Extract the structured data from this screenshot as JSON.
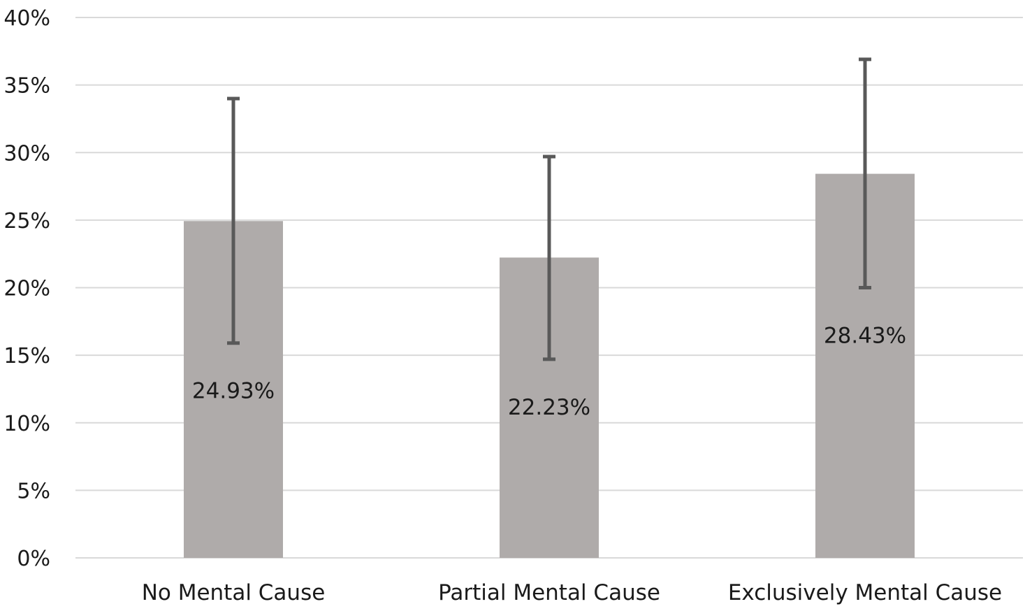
{
  "chart_data": {
    "type": "bar",
    "title": "",
    "xlabel": "",
    "ylabel": "",
    "categories": [
      "No Mental Cause",
      "Partial Mental Cause",
      "Exclusively Mental Cause"
    ],
    "values": [
      24.93,
      22.23,
      28.43
    ],
    "data_labels": [
      "24.93%",
      "22.23%",
      "28.43%"
    ],
    "error_bars": [
      {
        "low": 15.9,
        "high": 34.0
      },
      {
        "low": 14.7,
        "high": 29.7
      },
      {
        "low": 20.0,
        "high": 36.9
      }
    ],
    "ylim": [
      0,
      40
    ],
    "yticks": [
      0,
      5,
      10,
      15,
      20,
      25,
      30,
      35,
      40
    ],
    "ytick_labels": [
      "0%",
      "5%",
      "10%",
      "15%",
      "20%",
      "25%",
      "30%",
      "35%",
      "40%"
    ],
    "grid": true,
    "legend": "none",
    "colors": {
      "bar": "#afabaa",
      "error_bar": "#595959",
      "grid": "#d9d9d9",
      "text": "#1a1a1a"
    }
  }
}
